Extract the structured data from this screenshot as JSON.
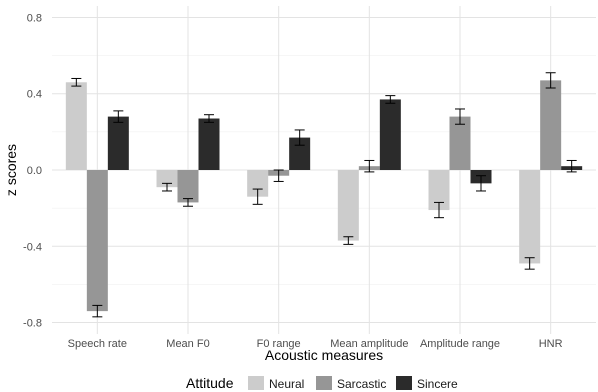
{
  "chart_data": {
    "type": "bar",
    "title": "",
    "xlabel": "Acoustic measures",
    "ylabel": "z scores",
    "categories": [
      "Speech rate",
      "Mean F0",
      "F0 range",
      "Mean amplitude",
      "Amplitude range",
      "HNR"
    ],
    "ylim": [
      -0.86,
      0.86
    ],
    "yticks": [
      -0.8,
      -0.4,
      0.0,
      0.4,
      0.8
    ],
    "ytick_labels": [
      "-0.8",
      "-0.4",
      "0.0",
      "0.4",
      "0.8"
    ],
    "grid": true,
    "legend": {
      "title": "Attitude",
      "position": "bottom"
    },
    "series": [
      {
        "name": "Neural",
        "color": "#cccccc",
        "values": [
          0.46,
          -0.09,
          -0.14,
          -0.37,
          -0.21,
          -0.49
        ],
        "err": [
          0.02,
          0.02,
          0.04,
          0.02,
          0.04,
          0.03
        ]
      },
      {
        "name": "Sarcastic",
        "color": "#969696",
        "values": [
          -0.74,
          -0.17,
          -0.03,
          0.02,
          0.28,
          0.47
        ],
        "err": [
          0.03,
          0.02,
          0.03,
          0.03,
          0.04,
          0.04
        ]
      },
      {
        "name": "Sincere",
        "color": "#2b2b2b",
        "values": [
          0.28,
          0.27,
          0.17,
          0.37,
          -0.07,
          0.02
        ],
        "err": [
          0.03,
          0.02,
          0.04,
          0.02,
          0.04,
          0.03
        ]
      }
    ]
  }
}
